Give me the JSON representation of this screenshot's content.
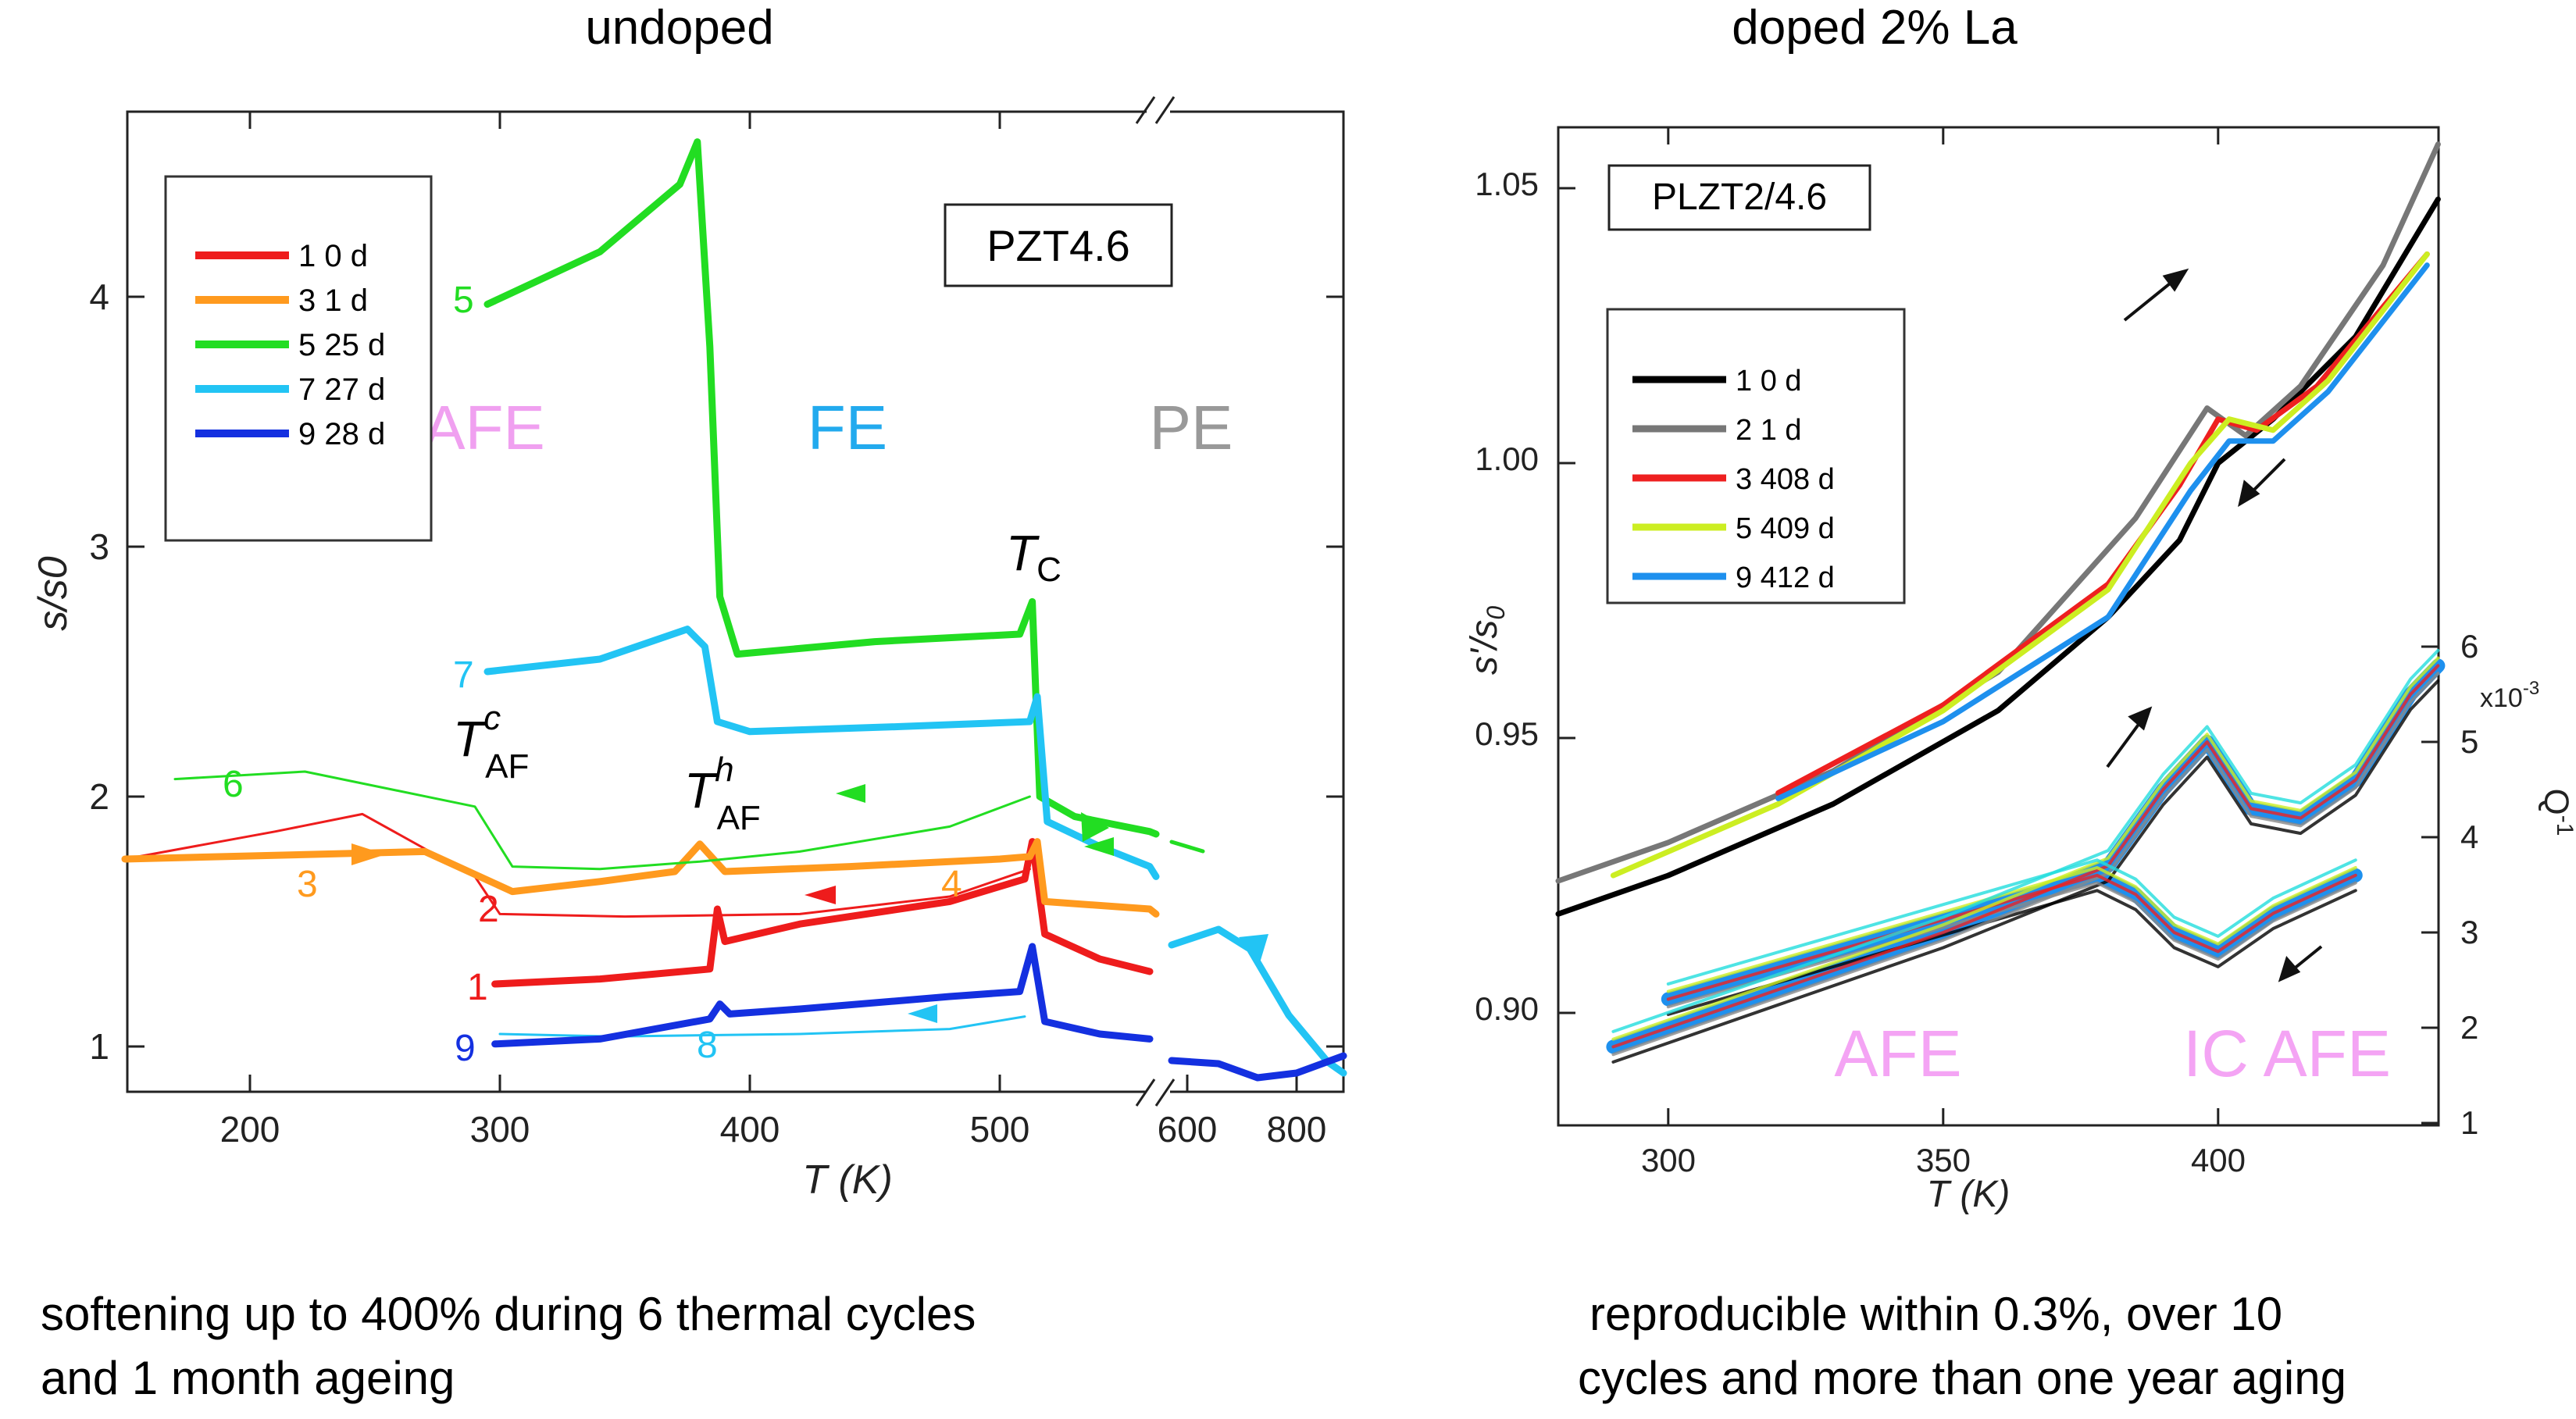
{
  "headings": {
    "left": "undoped",
    "right": "doped 2% La"
  },
  "captions": {
    "left_line1": "softening up to 400% during 6 thermal cycles",
    "left_line2": "and 1 month ageing",
    "right_line1": "reproducible within 0.3%, over 10",
    "right_line2": "cycles and more than one year aging"
  },
  "chart_data": [
    {
      "type": "line",
      "title": "PZT4.6",
      "xlabel": "T (K)",
      "ylabel": "s/s0",
      "ylim": [
        0.8,
        4.8
      ],
      "xticks": [
        "200",
        "300",
        "400",
        "500",
        "600",
        "800"
      ],
      "yticks": [
        "1",
        "2",
        "3",
        "4"
      ],
      "axis_break": "after 560 K; scale changes to 600-800 K",
      "regions": [
        {
          "label": "AFE",
          "color": "#f0a0f0"
        },
        {
          "label": "FE",
          "color": "#22aaee"
        },
        {
          "label": "PE",
          "color": "#999999"
        }
      ],
      "legend": [
        {
          "label": "1   0 d",
          "color": "#ee1c1c"
        },
        {
          "label": "3   1 d",
          "color": "#ff9a1e"
        },
        {
          "label": "5  25 d",
          "color": "#22dd22"
        },
        {
          "label": "7  27 d",
          "color": "#22c4f4"
        },
        {
          "label": "9  28 d",
          "color": "#1430e0"
        }
      ],
      "series": [
        {
          "name": "1",
          "color": "#ee1c1c",
          "points": [
            [
              298,
              1.25
            ],
            [
              340,
              1.27
            ],
            [
              384,
              1.31
            ],
            [
              387,
              1.55
            ],
            [
              390,
              1.42
            ],
            [
              420,
              1.49
            ],
            [
              480,
              1.58
            ],
            [
              510,
              1.67
            ],
            [
              513,
              1.82
            ],
            [
              518,
              1.45
            ],
            [
              540,
              1.35
            ],
            [
              560,
              1.3
            ]
          ]
        },
        {
          "name": "2",
          "color": "#ee1c1c",
          "points": [
            [
              512,
              1.71
            ],
            [
              480,
              1.6
            ],
            [
              420,
              1.53
            ],
            [
              350,
              1.52
            ],
            [
              300,
              1.53
            ],
            [
              290,
              1.68
            ],
            [
              245,
              1.93
            ],
            [
              210,
              1.86
            ],
            [
              150,
              1.75
            ]
          ]
        },
        {
          "name": "3",
          "color": "#ff9a1e",
          "points": [
            [
              150,
              1.75
            ],
            [
              230,
              1.77
            ],
            [
              270,
              1.78
            ],
            [
              305,
              1.62
            ],
            [
              340,
              1.66
            ],
            [
              370,
              1.7
            ],
            [
              380,
              1.81
            ],
            [
              390,
              1.7
            ],
            [
              440,
              1.72
            ],
            [
              500,
              1.75
            ],
            [
              512,
              1.76
            ],
            [
              515,
              1.82
            ],
            [
              518,
              1.58
            ],
            [
              560,
              1.55
            ],
            [
              580,
              1.53
            ]
          ]
        },
        {
          "name": "5",
          "color": "#22dd22",
          "points": [
            [
              295,
              3.97
            ],
            [
              340,
              4.18
            ],
            [
              372,
              4.45
            ],
            [
              379,
              4.62
            ],
            [
              384,
              3.8
            ],
            [
              388,
              2.8
            ],
            [
              395,
              2.57
            ],
            [
              450,
              2.62
            ],
            [
              508,
              2.65
            ],
            [
              513,
              2.78
            ],
            [
              516,
              2.0
            ],
            [
              530,
              1.92
            ],
            [
              560,
              1.86
            ],
            [
              580,
              1.85
            ]
          ]
        },
        {
          "name": "6",
          "color": "#22dd22",
          "points": [
            [
              512,
              2.0
            ],
            [
              480,
              1.88
            ],
            [
              420,
              1.78
            ],
            [
              380,
              1.74
            ],
            [
              340,
              1.71
            ],
            [
              305,
              1.72
            ],
            [
              290,
              1.96
            ],
            [
              222,
              2.1
            ],
            [
              170,
              2.07
            ]
          ]
        },
        {
          "name": "7",
          "color": "#22c4f4",
          "points": [
            [
              295,
              2.5
            ],
            [
              340,
              2.55
            ],
            [
              375,
              2.67
            ],
            [
              382,
              2.6
            ],
            [
              387,
              2.3
            ],
            [
              400,
              2.26
            ],
            [
              460,
              2.28
            ],
            [
              512,
              2.3
            ],
            [
              515,
              2.4
            ],
            [
              519,
              1.9
            ],
            [
              540,
              1.8
            ],
            [
              560,
              1.72
            ],
            [
              580,
              1.68
            ]
          ]
        },
        {
          "name": "8",
          "color": "#22c4f4",
          "points": [
            [
              510,
              1.12
            ],
            [
              480,
              1.07
            ],
            [
              420,
              1.05
            ],
            [
              345,
              1.04
            ],
            [
              300,
              1.05
            ]
          ]
        },
        {
          "name": "9",
          "color": "#1430e0",
          "points": [
            [
              298,
              1.01
            ],
            [
              340,
              1.03
            ],
            [
              384,
              1.11
            ],
            [
              388,
              1.17
            ],
            [
              392,
              1.13
            ],
            [
              420,
              1.15
            ],
            [
              480,
              1.2
            ],
            [
              508,
              1.22
            ],
            [
              513,
              1.4
            ],
            [
              518,
              1.1
            ],
            [
              540,
              1.05
            ],
            [
              560,
              1.03
            ]
          ]
        }
      ],
      "annotations": [
        "T_C",
        "T_AF^c",
        "T_AF^h",
        "1",
        "2",
        "3",
        "4",
        "5",
        "6",
        "7",
        "8",
        "9"
      ]
    },
    {
      "type": "line",
      "title": "PLZT2/4.6",
      "xlabel": "T (K)",
      "ylabel": "s'/s0",
      "y2label": "Q^-1",
      "y2unit": "x10^-3",
      "xlim": [
        280,
        440
      ],
      "ylim": [
        0.88,
        1.06
      ],
      "y2lim": [
        1,
        6
      ],
      "xticks": [
        "300",
        "350",
        "400"
      ],
      "yticks": [
        "0.90",
        "0.95",
        "1.00",
        "1.05"
      ],
      "y2ticks": [
        "1",
        "2",
        "3",
        "4",
        "5",
        "6"
      ],
      "regions": [
        {
          "label": "AFE",
          "color": "#f4a4f4"
        },
        {
          "label": "IC AFE",
          "color": "#f4a4f4"
        }
      ],
      "legend": [
        {
          "label": "1   0 d",
          "color": "#000000"
        },
        {
          "label": "2   1 d",
          "color": "#777777"
        },
        {
          "label": "3   408 d",
          "color": "#ee2020"
        },
        {
          "label": "5   409 d",
          "color": "#ccee22"
        },
        {
          "label": "9   412 d",
          "color": "#1e90ee"
        }
      ],
      "series": [
        {
          "name": "s 1",
          "color": "#000000",
          "points": [
            [
              280,
              0.918
            ],
            [
              300,
              0.925
            ],
            [
              330,
              0.938
            ],
            [
              360,
              0.955
            ],
            [
              380,
              0.972
            ],
            [
              393,
              0.986
            ],
            [
              400,
              1.0
            ],
            [
              410,
              1.008
            ],
            [
              425,
              1.023
            ],
            [
              440,
              1.048
            ]
          ]
        },
        {
          "name": "s 2",
          "color": "#777777",
          "points": [
            [
              280,
              0.924
            ],
            [
              300,
              0.931
            ],
            [
              330,
              0.944
            ],
            [
              360,
              0.962
            ],
            [
              385,
              0.99
            ],
            [
              398,
              1.01
            ],
            [
              405,
              1.005
            ],
            [
              415,
              1.014
            ],
            [
              430,
              1.036
            ],
            [
              440,
              1.058
            ]
          ]
        },
        {
          "name": "s 3",
          "color": "#ee2020",
          "points": [
            [
              320,
              0.94
            ],
            [
              350,
              0.956
            ],
            [
              380,
              0.978
            ],
            [
              393,
              0.996
            ],
            [
              400,
              1.008
            ],
            [
              407,
              1.006
            ],
            [
              418,
              1.014
            ],
            [
              438,
              1.038
            ]
          ]
        },
        {
          "name": "s 5",
          "color": "#ccee22",
          "points": [
            [
              290,
              0.925
            ],
            [
              320,
              0.938
            ],
            [
              350,
              0.955
            ],
            [
              380,
              0.977
            ],
            [
              395,
              1.0
            ],
            [
              402,
              1.008
            ],
            [
              410,
              1.006
            ],
            [
              420,
              1.015
            ],
            [
              438,
              1.038
            ]
          ]
        },
        {
          "name": "s 9",
          "color": "#1e90ee",
          "points": [
            [
              320,
              0.939
            ],
            [
              350,
              0.953
            ],
            [
              380,
              0.972
            ],
            [
              395,
              0.995
            ],
            [
              402,
              1.004
            ],
            [
              410,
              1.004
            ],
            [
              420,
              1.013
            ],
            [
              438,
              1.036
            ]
          ]
        },
        {
          "name": "Q-1 heating",
          "color": "#1e90ee",
          "points": [
            [
              290,
              1.8
            ],
            [
              320,
              2.4
            ],
            [
              350,
              3.0
            ],
            [
              380,
              3.7
            ],
            [
              390,
              4.5
            ],
            [
              398,
              5.0
            ],
            [
              406,
              4.3
            ],
            [
              415,
              4.2
            ],
            [
              425,
              4.6
            ],
            [
              435,
              5.5
            ],
            [
              440,
              5.8
            ]
          ]
        },
        {
          "name": "Q-1 cooling",
          "color": "#1e90ee",
          "points": [
            [
              425,
              3.6
            ],
            [
              410,
              3.2
            ],
            [
              400,
              2.8
            ],
            [
              392,
              3.0
            ],
            [
              385,
              3.4
            ],
            [
              378,
              3.6
            ],
            [
              360,
              3.3
            ],
            [
              330,
              2.8
            ],
            [
              300,
              2.3
            ]
          ]
        }
      ],
      "annotations": [
        "arrows: heating up, cooling down"
      ]
    }
  ]
}
